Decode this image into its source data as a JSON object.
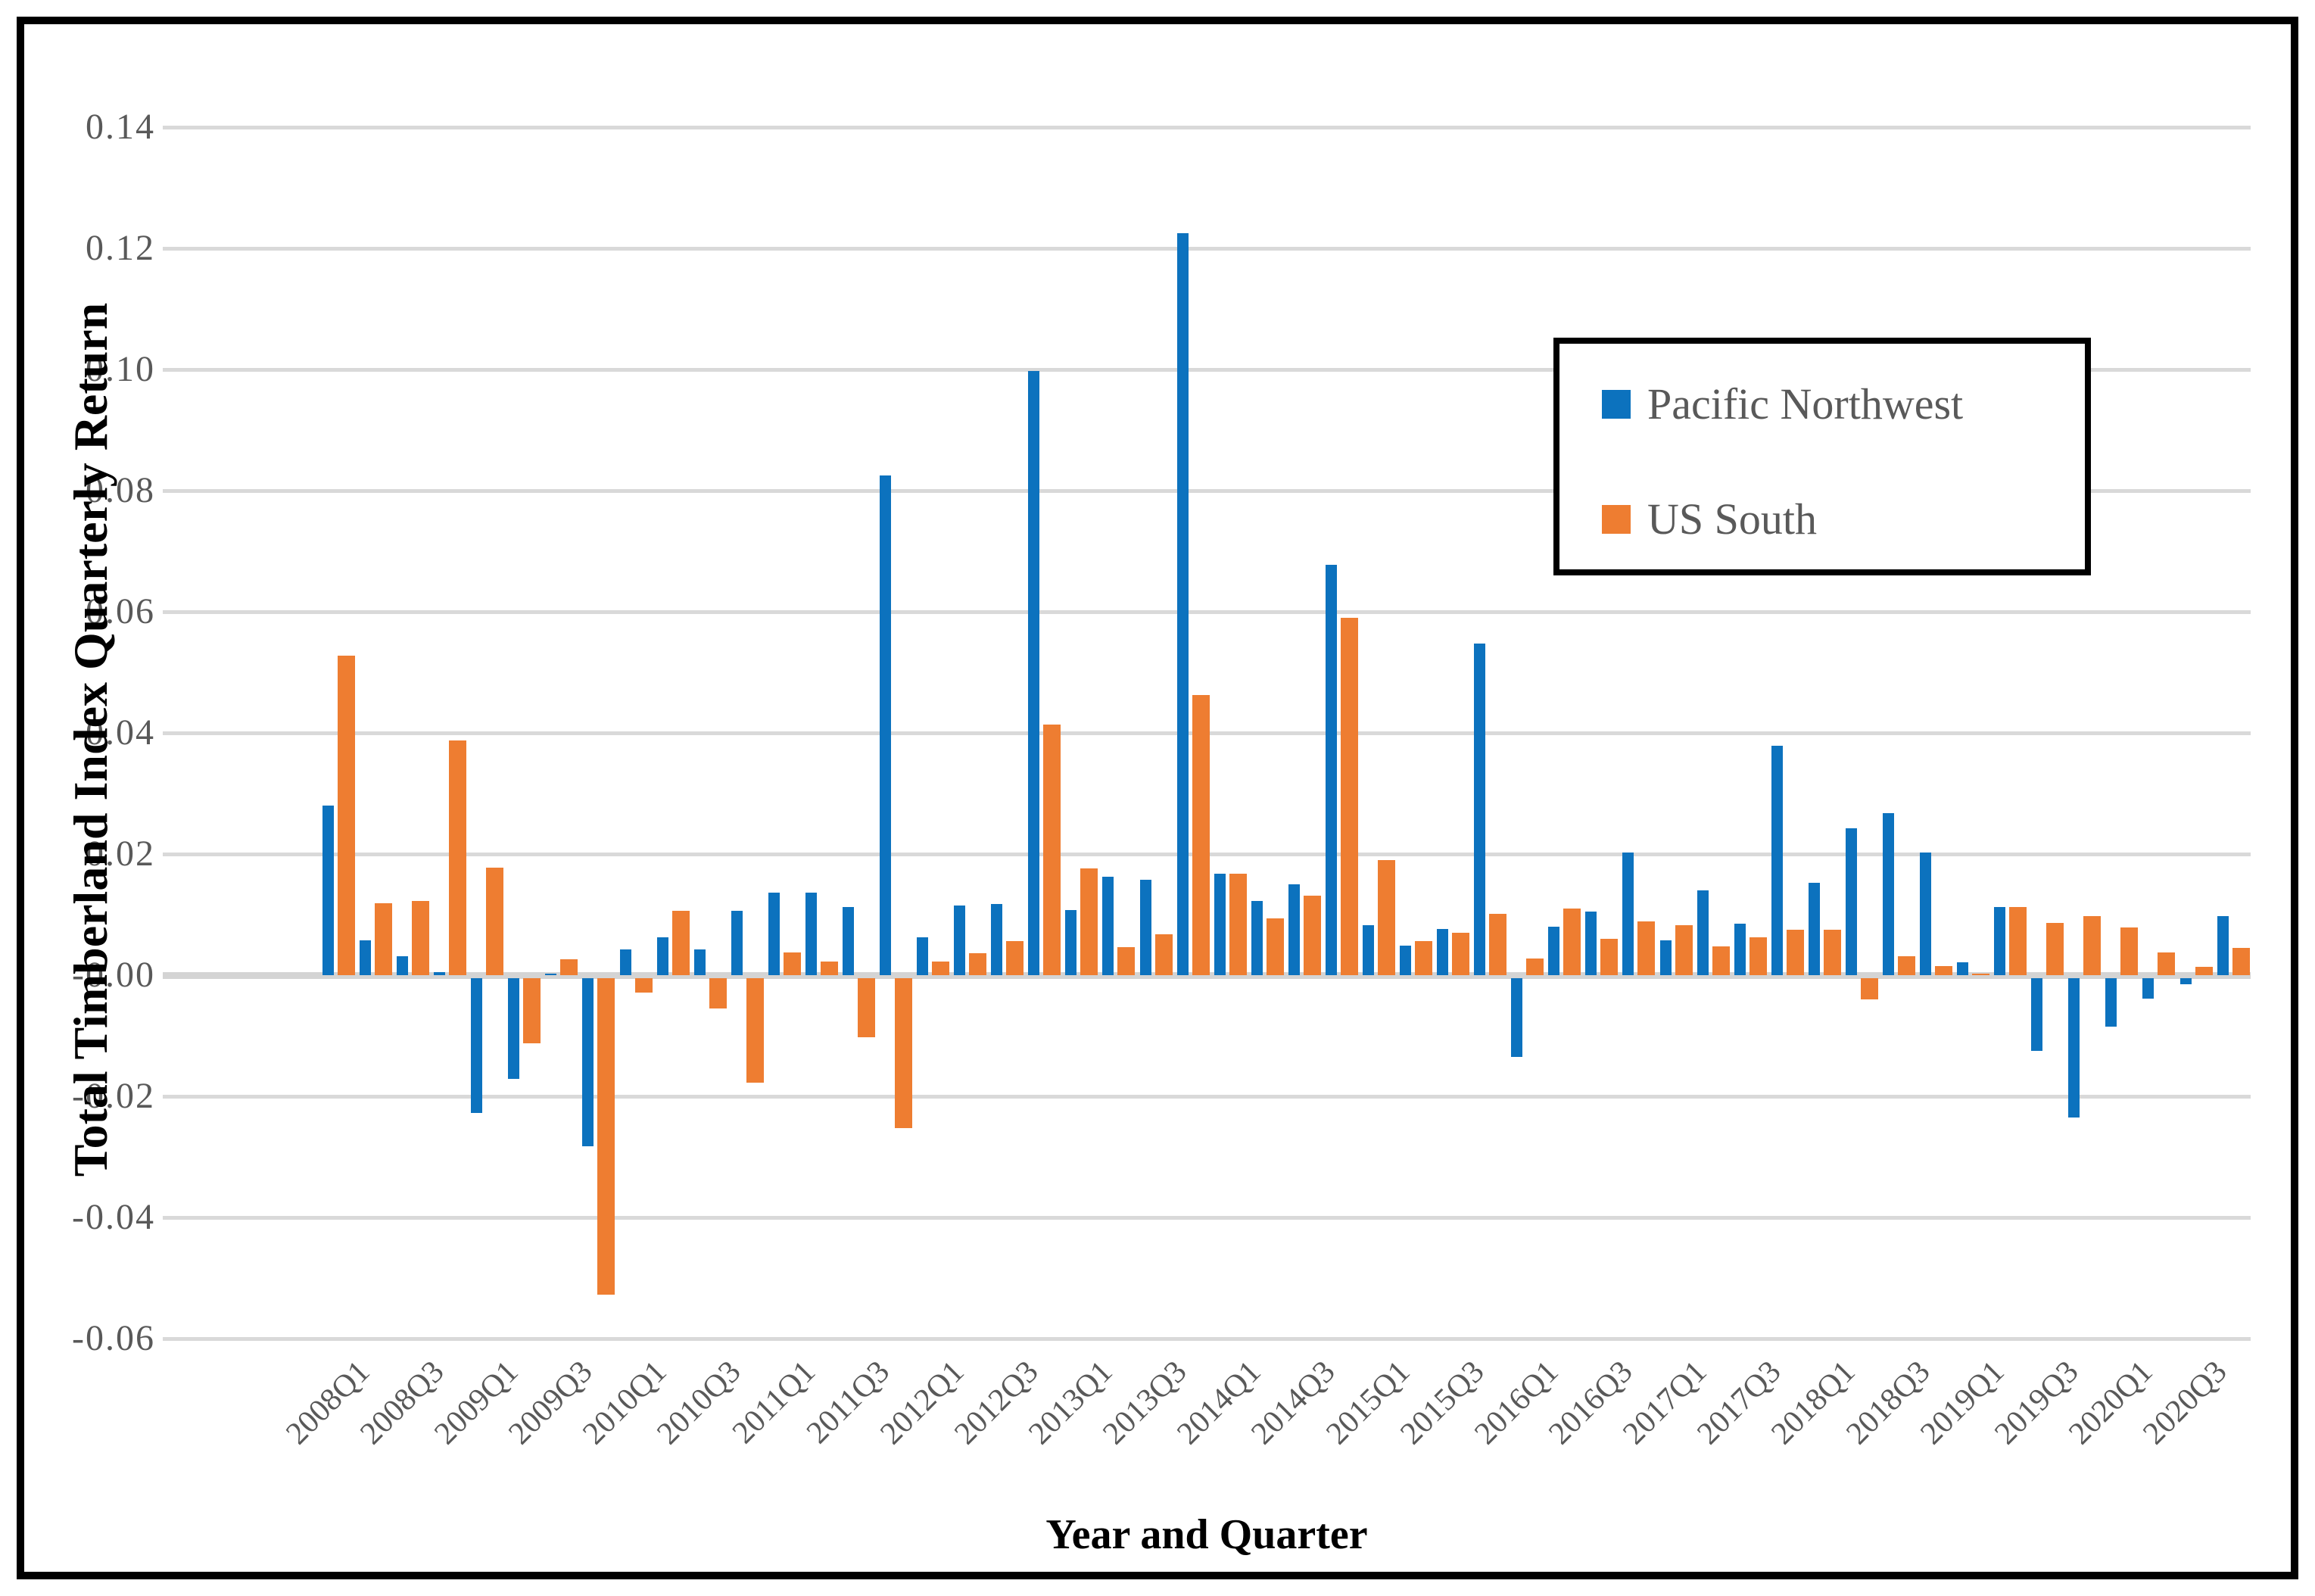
{
  "figure": {
    "background": "#ffffff",
    "frame_color": "#000000",
    "gridline_color": "#D9D9D9",
    "tick_text_color": "#595959",
    "axis_title_color": "#000000"
  },
  "chart_data": {
    "type": "bar",
    "title": "",
    "xlabel": "Year and Quarter",
    "ylabel": "Total Timberland Index Quarterly Return",
    "ylim": [
      -0.06,
      0.14
    ],
    "y_tick_step": 0.02,
    "y_tick_format": "2dp",
    "grid": true,
    "x_tick_labels_every": 2,
    "legend_position": "inside-upper-right",
    "categories": [
      "2008Q1",
      "2008Q2",
      "2008Q3",
      "2008Q4",
      "2009Q1",
      "2009Q2",
      "2009Q3",
      "2009Q4",
      "2010Q1",
      "2010Q2",
      "2010Q3",
      "2010Q4",
      "2011Q1",
      "2011Q2",
      "2011Q3",
      "2011Q4",
      "2012Q1",
      "2012Q2",
      "2012Q3",
      "2012Q4",
      "2013Q1",
      "2013Q2",
      "2013Q3",
      "2013Q4",
      "2014Q1",
      "2014Q2",
      "2014Q3",
      "2014Q4",
      "2015Q1",
      "2015Q2",
      "2015Q3",
      "2015Q4",
      "2016Q1",
      "2016Q2",
      "2016Q3",
      "2016Q4",
      "2017Q1",
      "2017Q2",
      "2017Q3",
      "2017Q4",
      "2018Q1",
      "2018Q2",
      "2018Q3",
      "2018Q4",
      "2019Q1",
      "2019Q2",
      "2019Q3",
      "2019Q4",
      "2020Q1",
      "2020Q2",
      "2020Q3",
      "2020Q4"
    ],
    "series": [
      {
        "name": "Pacific Northwest",
        "color": "#0C72BE",
        "values": [
          0.028,
          0.0057,
          0.0031,
          0.0005,
          -0.0222,
          -0.0166,
          0.0002,
          -0.0278,
          0.0043,
          0.0062,
          0.0042,
          0.0106,
          0.0136,
          0.0136,
          0.0113,
          0.0825,
          0.0063,
          0.0115,
          0.0118,
          0.0998,
          0.0108,
          0.0163,
          0.0158,
          0.1225,
          0.0167,
          0.0122,
          0.015,
          0.0678,
          0.0083,
          0.0049,
          0.0076,
          0.0548,
          -0.013,
          0.008,
          0.0105,
          0.0202,
          0.0057,
          0.014,
          0.0085,
          0.0379,
          0.0153,
          0.0243,
          0.0267,
          0.0202,
          0.0021,
          0.0113,
          -0.012,
          -0.023,
          -0.008,
          -0.0034,
          -0.001,
          0.0097
        ]
      },
      {
        "name": "US South",
        "color": "#EE7D31",
        "values": [
          0.0528,
          0.0119,
          0.0122,
          0.0387,
          0.0178,
          -0.0107,
          0.0026,
          -0.0523,
          -0.0024,
          0.0106,
          -0.005,
          -0.0172,
          0.0038,
          0.0022,
          -0.0097,
          -0.0248,
          0.0022,
          0.0036,
          0.0056,
          0.0414,
          0.0176,
          0.0046,
          0.0067,
          0.0463,
          0.0167,
          0.0094,
          0.0131,
          0.059,
          0.019,
          0.0056,
          0.007,
          0.0101,
          0.0028,
          0.011,
          0.006,
          0.0089,
          0.0083,
          0.0048,
          0.0062,
          0.0075,
          0.0075,
          -0.0035,
          0.0031,
          0.0015,
          0.0003,
          0.0112,
          0.0086,
          0.0097,
          0.0079,
          0.0037,
          0.0014,
          0.0045
        ]
      }
    ]
  }
}
